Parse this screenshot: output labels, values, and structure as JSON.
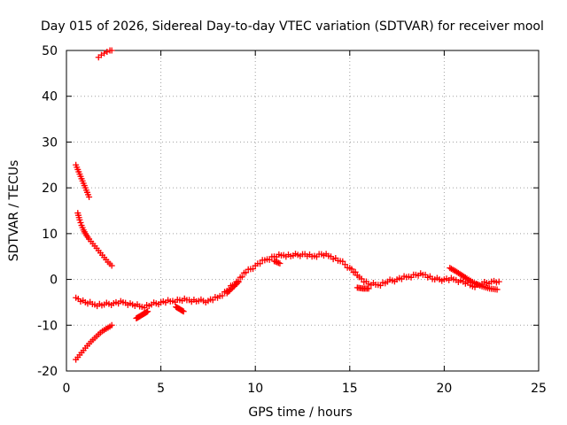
{
  "chart_data": {
    "type": "scatter",
    "title": "Day 015 of 2026, Sidereal Day-to-day VTEC variation (SDTVAR) for receiver mool",
    "xlabel": "GPS time / hours",
    "ylabel": "SDTVAR / TECUs",
    "xlim": [
      0,
      25
    ],
    "ylim": [
      -20,
      50
    ],
    "xticks": [
      0,
      5,
      10,
      15,
      20,
      25
    ],
    "yticks": [
      -20,
      -10,
      0,
      10,
      20,
      30,
      40,
      50
    ],
    "xtick_labels": [
      "0",
      "5",
      "10",
      "15",
      "20",
      "25"
    ],
    "ytick_labels": [
      "-20",
      "-10",
      "0",
      "10",
      "20",
      "30",
      "40",
      "50"
    ],
    "grid": true,
    "marker": "+",
    "color": "#ff0000",
    "series": [
      {
        "name": "arc-top",
        "x": [
          1.7,
          1.85,
          2.0,
          2.15,
          2.3,
          2.4
        ],
        "y": [
          48.5,
          49.0,
          49.4,
          49.7,
          50.0,
          50.0
        ]
      },
      {
        "name": "arc-descending-upper",
        "x": [
          0.5,
          0.6,
          0.7,
          0.8,
          0.9,
          1.0,
          1.1,
          1.2
        ],
        "y": [
          25,
          24,
          23,
          22,
          21,
          20,
          19,
          18
        ]
      },
      {
        "name": "arc-descending-middle",
        "x": [
          0.6,
          0.7,
          0.8,
          0.9,
          1.0,
          1.2,
          1.4,
          1.6,
          1.8,
          2.0,
          2.2,
          2.4
        ],
        "y": [
          14.5,
          13,
          11.8,
          10.8,
          10,
          8.8,
          7.8,
          6.8,
          5.8,
          4.8,
          3.8,
          3.0
        ]
      },
      {
        "name": "arc-ascending-lower",
        "x": [
          0.5,
          0.7,
          0.9,
          1.1,
          1.3,
          1.5,
          1.7,
          1.9,
          2.1,
          2.3,
          2.4
        ],
        "y": [
          -17.5,
          -16.5,
          -15.5,
          -14.5,
          -13.6,
          -12.8,
          -12.0,
          -11.3,
          -10.8,
          -10.3,
          -10.0
        ]
      },
      {
        "name": "main-trace",
        "x": [
          0.5,
          1.0,
          1.5,
          2.0,
          2.5,
          3.0,
          3.5,
          4.0,
          4.5,
          5.0,
          5.5,
          6.0,
          6.5,
          7.0,
          7.5,
          8.0,
          8.5,
          9.0,
          9.5,
          10.0,
          10.5,
          11.0,
          11.5,
          12.0,
          12.5,
          13.0,
          13.5,
          14.0,
          14.5,
          15.0,
          15.5,
          16.0,
          16.5,
          17.0,
          17.5,
          18.0,
          18.5,
          19.0,
          19.5,
          20.0,
          20.5,
          21.0,
          21.5,
          22.0,
          22.5,
          22.9
        ],
        "y": [
          -4.0,
          -5.0,
          -5.5,
          -5.5,
          -5.2,
          -5.0,
          -5.5,
          -6.0,
          -5.5,
          -5.0,
          -4.8,
          -4.5,
          -4.5,
          -4.7,
          -4.7,
          -4.0,
          -2.5,
          -0.5,
          1.5,
          3.0,
          4.2,
          5.0,
          5.3,
          5.2,
          5.5,
          5.0,
          5.5,
          5.0,
          4.0,
          2.5,
          0.5,
          -1.0,
          -1.2,
          -0.5,
          0.0,
          0.5,
          1.0,
          1.0,
          0.0,
          0.0,
          0.0,
          -0.5,
          -1.5,
          -1.0,
          -0.5,
          -0.5
        ]
      },
      {
        "name": "extra-segments",
        "x": [
          3.7,
          3.9,
          4.1,
          4.3,
          5.8,
          6.0,
          6.2,
          8.5,
          8.8,
          9.1,
          11.0,
          11.3,
          20.3,
          20.6,
          20.9,
          21.2,
          21.6,
          22.0,
          22.4,
          22.8,
          15.4,
          15.7,
          16.0
        ],
        "y": [
          -8.5,
          -8.0,
          -7.5,
          -7.0,
          -6.0,
          -6.5,
          -7.0,
          -3.0,
          -1.8,
          -0.6,
          4.0,
          3.5,
          2.5,
          1.8,
          1.0,
          0.2,
          -0.8,
          -1.5,
          -2.0,
          -2.2,
          -1.8,
          -2.0,
          -2.0
        ]
      }
    ]
  }
}
